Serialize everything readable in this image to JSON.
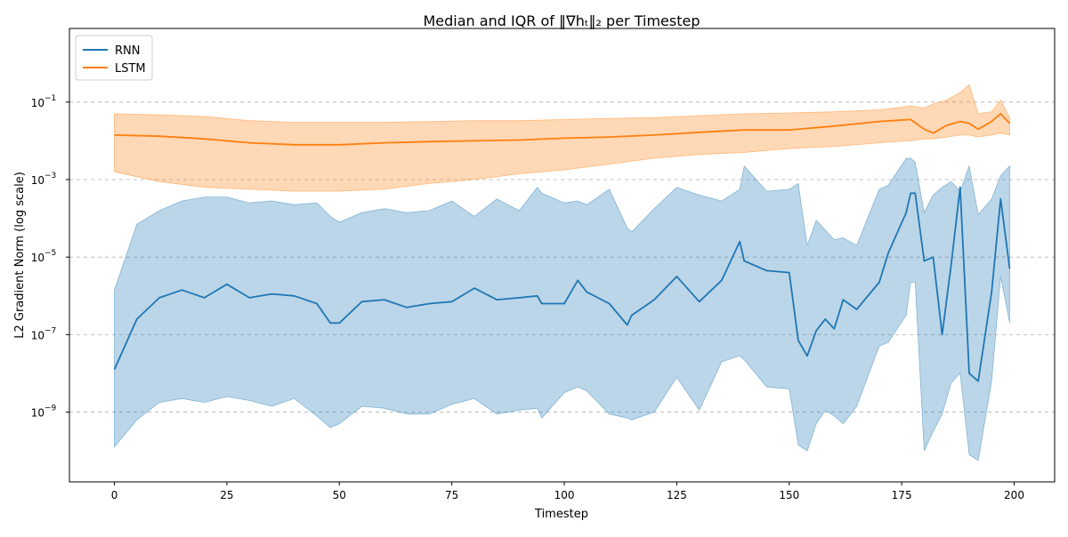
{
  "chart_data": {
    "type": "line",
    "title": "Median and IQR of ‖∇hₜ‖₂ per Timestep",
    "xlabel": "Timestep",
    "ylabel": "L2 Gradient Norm (log scale)",
    "yscale": "log",
    "xlim": [
      -10,
      209
    ],
    "ylim_log10": [
      -10.8,
      0.9
    ],
    "xticks": [
      0,
      25,
      50,
      75,
      100,
      125,
      150,
      175,
      200
    ],
    "xtick_labels": [
      "0",
      "25",
      "50",
      "75",
      "100",
      "125",
      "150",
      "175",
      "200"
    ],
    "yticks_log10": [
      -9,
      -7,
      -5,
      -3,
      -1
    ],
    "ytick_labels": [
      "10",
      "10",
      "10",
      "10",
      "10"
    ],
    "ytick_exponents": [
      "−9",
      "−7",
      "−5",
      "−3",
      "−1"
    ],
    "grid": "horizontal dashed",
    "legend_position": "top-left",
    "series": [
      {
        "name": "RNN",
        "color": "#1f77b4",
        "fill_color": "#1f77b4",
        "fill_opacity": 0.3,
        "x": [
          0,
          5,
          10,
          15,
          20,
          25,
          30,
          35,
          40,
          45,
          48,
          50,
          55,
          60,
          65,
          70,
          75,
          80,
          85,
          90,
          94,
          95,
          100,
          103,
          105,
          110,
          114,
          115,
          120,
          125,
          130,
          135,
          139,
          140,
          145,
          150,
          152,
          154,
          156,
          158,
          160,
          162,
          165,
          170,
          172,
          176,
          177,
          178,
          180,
          182,
          184,
          186,
          188,
          190,
          192,
          195,
          197,
          199
        ],
        "median_log10": [
          -7.9,
          -6.6,
          -6.05,
          -5.85,
          -6.05,
          -5.7,
          -6.05,
          -5.95,
          -6.0,
          -6.2,
          -6.7,
          -6.7,
          -6.15,
          -6.1,
          -6.3,
          -6.2,
          -6.15,
          -5.8,
          -6.1,
          -6.05,
          -6.0,
          -6.2,
          -6.2,
          -5.6,
          -5.9,
          -6.2,
          -6.75,
          -6.5,
          -6.1,
          -5.5,
          -6.15,
          -5.6,
          -4.6,
          -5.1,
          -5.35,
          -5.4,
          -7.15,
          -7.55,
          -6.9,
          -6.6,
          -6.85,
          -6.1,
          -6.35,
          -5.65,
          -4.9,
          -3.85,
          -3.35,
          -3.35,
          -5.1,
          -5.0,
          -7.0,
          -5.2,
          -3.2,
          -8.0,
          -8.2,
          -5.9,
          -3.5,
          -5.3
        ],
        "q1_log10": [
          -9.9,
          -9.2,
          -8.75,
          -8.65,
          -8.75,
          -8.6,
          -8.7,
          -8.85,
          -8.65,
          -9.1,
          -9.4,
          -9.3,
          -8.85,
          -8.9,
          -9.05,
          -9.05,
          -8.8,
          -8.65,
          -9.05,
          -8.95,
          -8.9,
          -9.15,
          -8.5,
          -8.35,
          -8.45,
          -9.05,
          -9.15,
          -9.2,
          -9.0,
          -8.1,
          -8.95,
          -7.7,
          -7.55,
          -7.65,
          -8.35,
          -8.4,
          -9.85,
          -10.0,
          -9.3,
          -8.95,
          -9.1,
          -9.3,
          -8.85,
          -7.3,
          -7.2,
          -6.5,
          -5.65,
          -5.65,
          -10.0,
          -9.5,
          -9.05,
          -8.25,
          -8.0,
          -10.1,
          -10.25,
          -8.2,
          -5.5,
          -6.7
        ],
        "q3_log10": [
          -5.85,
          -4.15,
          -3.8,
          -3.55,
          -3.45,
          -3.45,
          -3.6,
          -3.55,
          -3.65,
          -3.6,
          -3.95,
          -4.1,
          -3.85,
          -3.75,
          -3.85,
          -3.8,
          -3.55,
          -3.95,
          -3.5,
          -3.8,
          -3.2,
          -3.35,
          -3.6,
          -3.55,
          -3.65,
          -3.25,
          -4.25,
          -4.35,
          -3.75,
          -3.2,
          -3.4,
          -3.55,
          -3.25,
          -2.65,
          -3.3,
          -3.25,
          -3.1,
          -4.7,
          -4.05,
          -4.3,
          -4.55,
          -4.5,
          -4.7,
          -3.25,
          -3.15,
          -2.45,
          -2.45,
          -2.55,
          -3.85,
          -3.4,
          -3.2,
          -3.05,
          -3.3,
          -2.65,
          -3.9,
          -3.5,
          -2.9,
          -2.65
        ]
      },
      {
        "name": "LSTM",
        "color": "#ff7f0e",
        "fill_color": "#ff7f0e",
        "fill_opacity": 0.3,
        "x": [
          0,
          10,
          20,
          30,
          40,
          50,
          60,
          70,
          80,
          90,
          100,
          110,
          120,
          130,
          140,
          150,
          160,
          170,
          177,
          180,
          182,
          185,
          188,
          190,
          192,
          195,
          197,
          199
        ],
        "median_log10": [
          -1.85,
          -1.88,
          -1.95,
          -2.05,
          -2.1,
          -2.1,
          -2.05,
          -2.02,
          -2.0,
          -1.98,
          -1.93,
          -1.9,
          -1.85,
          -1.78,
          -1.72,
          -1.72,
          -1.62,
          -1.5,
          -1.45,
          -1.7,
          -1.8,
          -1.6,
          -1.5,
          -1.55,
          -1.7,
          -1.5,
          -1.3,
          -1.55
        ],
        "q1_log10": [
          -2.8,
          -3.05,
          -3.2,
          -3.25,
          -3.3,
          -3.3,
          -3.25,
          -3.1,
          -3.0,
          -2.85,
          -2.75,
          -2.6,
          -2.45,
          -2.35,
          -2.3,
          -2.2,
          -2.15,
          -2.05,
          -2.0,
          -1.95,
          -1.95,
          -1.9,
          -1.85,
          -1.85,
          -1.9,
          -1.85,
          -1.8,
          -1.85
        ],
        "q3_log10": [
          -1.3,
          -1.33,
          -1.37,
          -1.48,
          -1.52,
          -1.52,
          -1.52,
          -1.5,
          -1.48,
          -1.48,
          -1.45,
          -1.42,
          -1.4,
          -1.35,
          -1.3,
          -1.28,
          -1.25,
          -1.2,
          -1.1,
          -1.15,
          -1.05,
          -0.95,
          -0.75,
          -0.55,
          -1.3,
          -1.25,
          -0.95,
          -1.4
        ]
      }
    ]
  }
}
